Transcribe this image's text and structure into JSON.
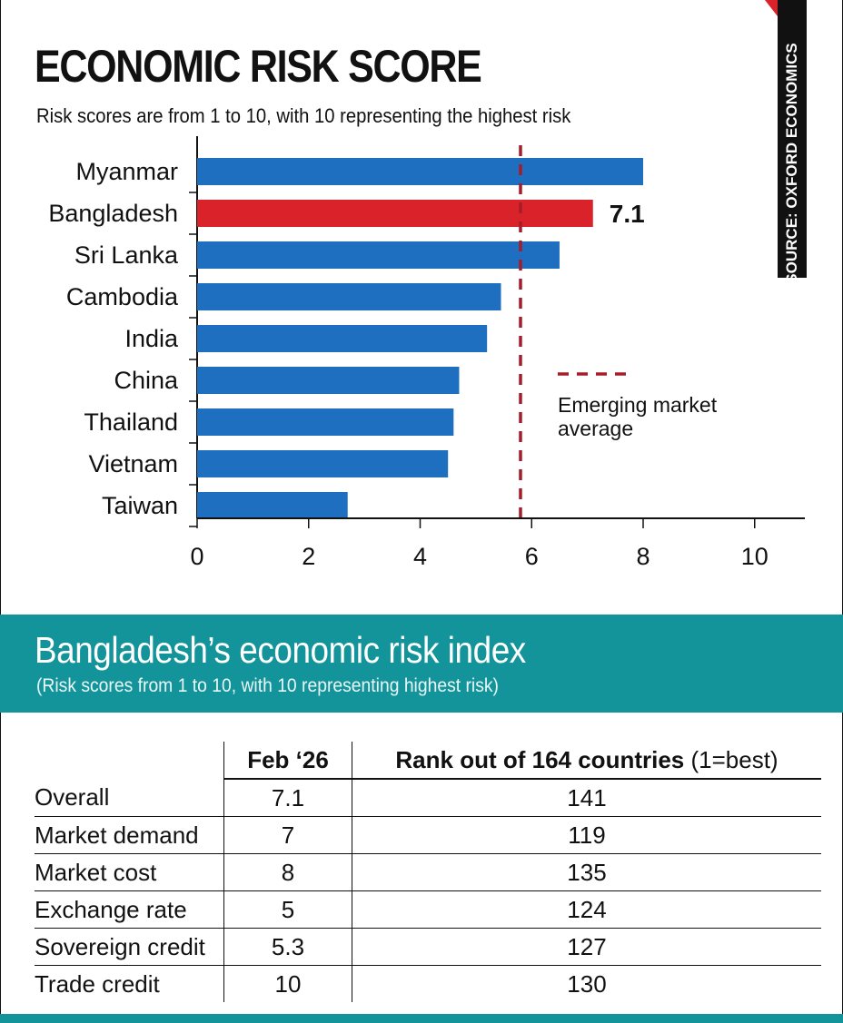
{
  "header": {
    "title": "ECONOMIC RISK SCORE",
    "subtitle": "Risk scores are from 1 to 10, with 10 representing the highest risk",
    "source": "SOURCE: OXFORD ECONOMICS"
  },
  "chart_data": {
    "type": "bar",
    "orientation": "horizontal",
    "title": "ECONOMIC RISK SCORE",
    "subtitle": "Risk scores are from 1 to 10, with 10 representing the highest risk",
    "categories": [
      "Myanmar",
      "Bangladesh",
      "Sri Lanka",
      "Cambodia",
      "India",
      "China",
      "Thailand",
      "Vietnam",
      "Taiwan"
    ],
    "values": [
      8.0,
      7.1,
      6.5,
      5.45,
      5.2,
      4.7,
      4.6,
      4.5,
      2.7
    ],
    "highlight": {
      "category": "Bangladesh",
      "label": "7.1"
    },
    "reference_line": {
      "value": 5.8,
      "label": "Emerging market average",
      "label_lines": [
        "Emerging market",
        "average"
      ],
      "style": "dashed"
    },
    "xlim": [
      0,
      10.9
    ],
    "xticks": [
      0,
      2,
      4,
      6,
      8,
      10
    ],
    "xlabel": "",
    "ylabel": "",
    "grid": false,
    "colors": {
      "bar": "#1f6fc0",
      "highlight": "#d9222a",
      "reference": "#a61c28"
    }
  },
  "table_section": {
    "title": "Bangladesh’s economic risk index",
    "subtitle": "(Risk scores from 1 to 10, with 10 representing highest risk)",
    "columns": {
      "feb": "Feb ‘26",
      "rank": "Rank out of 164 countries",
      "rank_note": "(1=best)"
    },
    "rows": [
      {
        "label": "Overall",
        "feb": "7.1",
        "rank": "141"
      },
      {
        "label": "Market demand",
        "feb": "7",
        "rank": "119"
      },
      {
        "label": "Market cost",
        "feb": "8",
        "rank": "135"
      },
      {
        "label": "Exchange rate",
        "feb": "5",
        "rank": "124"
      },
      {
        "label": "Sovereign credit",
        "feb": "5.3",
        "rank": "127"
      },
      {
        "label": "Trade credit",
        "feb": "10",
        "rank": "130"
      }
    ]
  },
  "colors": {
    "teal": "#13949b",
    "accent_red": "#d9222a",
    "bar_blue": "#1f6fc0"
  }
}
